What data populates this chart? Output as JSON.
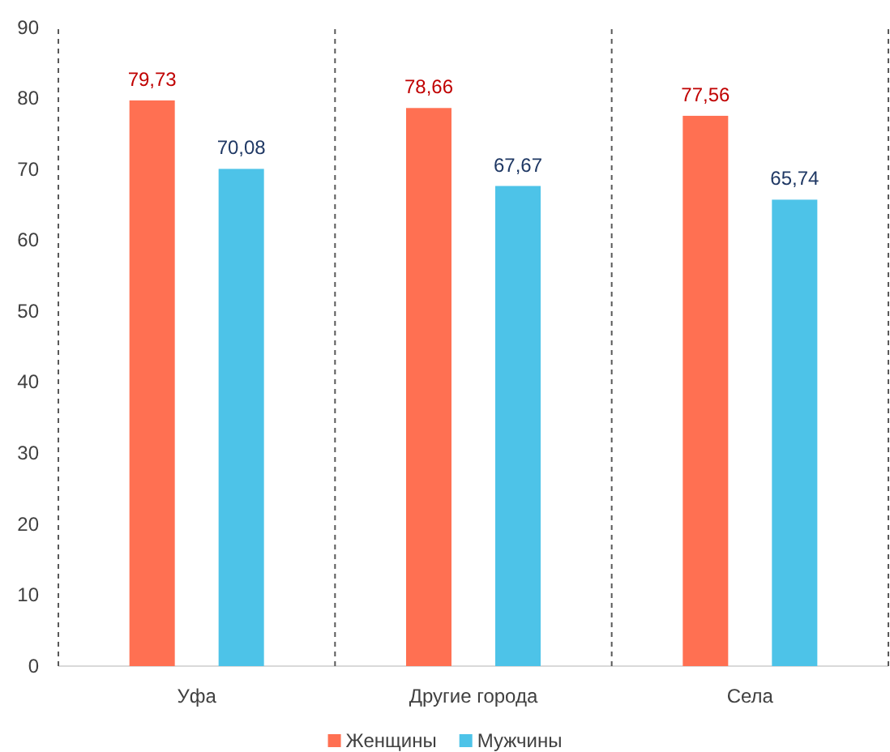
{
  "chart_data": {
    "type": "bar",
    "categories": [
      "Уфа",
      "Другие города",
      "Села"
    ],
    "series": [
      {
        "name": "Женщины",
        "color": "#ff7052",
        "values": [
          79.73,
          78.66,
          77.56
        ],
        "value_labels": [
          "79,73",
          "78,66",
          "77,56"
        ]
      },
      {
        "name": "Мужчины",
        "color": "#4dc3e8",
        "values": [
          70.08,
          67.67,
          65.74
        ],
        "value_labels": [
          "70,08",
          "67,67",
          "65,74"
        ]
      }
    ],
    "ylim": [
      0,
      90
    ],
    "yticks": [
      0,
      10,
      20,
      30,
      40,
      50,
      60,
      70,
      80,
      90
    ],
    "grid": false,
    "legend": "bottom"
  }
}
